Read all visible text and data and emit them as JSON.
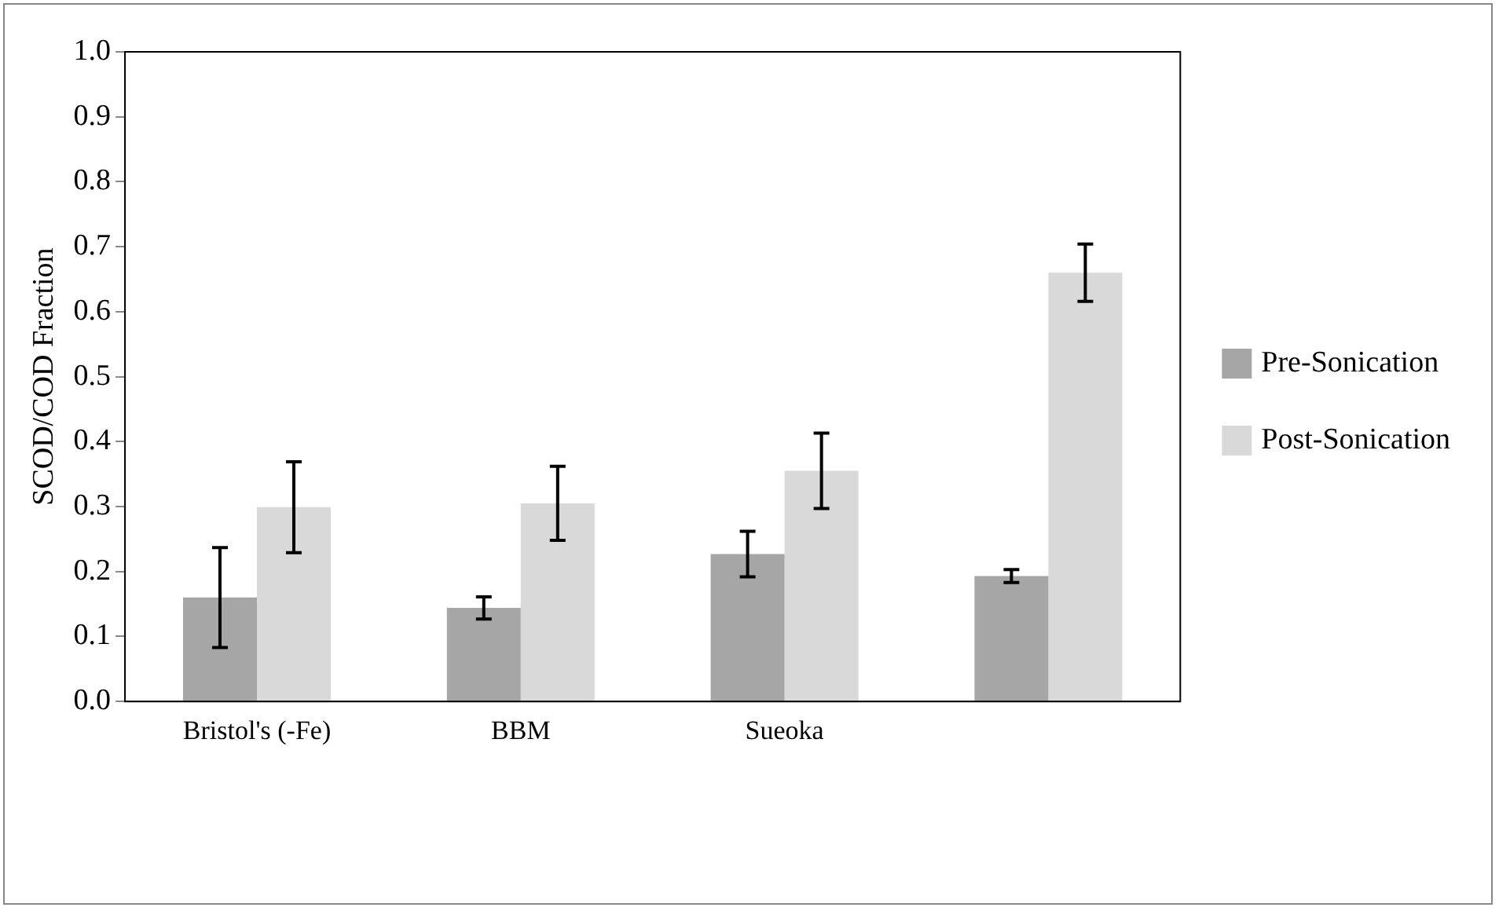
{
  "chart_data": {
    "type": "bar",
    "ylabel": "SCOD/COD Fraction",
    "categories": [
      "Bristol's (-Fe)",
      "BBM",
      "Sueoka",
      null
    ],
    "series": [
      {
        "name": "Pre-Sonication",
        "color": "#a6a6a6",
        "values": [
          0.16,
          0.144,
          0.227,
          0.193
        ],
        "errors": [
          0.077,
          0.017,
          0.035,
          0.01
        ]
      },
      {
        "name": "Post-Sonication",
        "color": "#d9d9d9",
        "values": [
          0.299,
          0.305,
          0.355,
          0.66
        ],
        "errors": [
          0.07,
          0.057,
          0.058,
          0.044
        ]
      }
    ],
    "ylim": [
      0,
      1
    ],
    "yticks": [
      {
        "value": 0,
        "label": "0.0"
      },
      {
        "value": 0.1,
        "label": "0.1"
      },
      {
        "value": 0.2,
        "label": "0.2"
      },
      {
        "value": 0.3,
        "label": "0.3"
      },
      {
        "value": 0.4,
        "label": "0.4"
      },
      {
        "value": 0.5,
        "label": "0.5"
      },
      {
        "value": 0.6,
        "label": "0.6"
      },
      {
        "value": 0.7,
        "label": "0.7"
      },
      {
        "value": 0.8,
        "label": "0.8"
      },
      {
        "value": 0.9,
        "label": "0.9"
      },
      {
        "value": 1,
        "label": "1.0"
      }
    ],
    "grid": false,
    "legend": "right"
  }
}
